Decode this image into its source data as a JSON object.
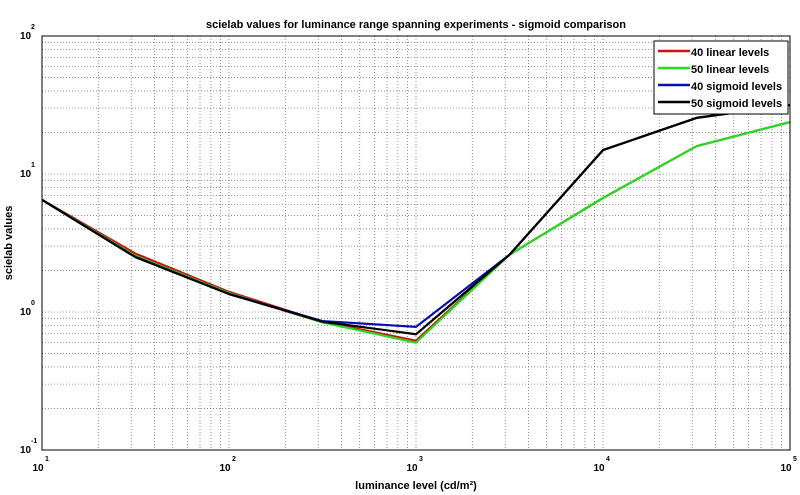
{
  "chart_data": {
    "type": "line",
    "title": "scielab values for luminance range spanning experiments - sigmoid comparison",
    "xlabel": "luminance level (cd/m²)",
    "ylabel": "scielab values",
    "xscale": "log",
    "yscale": "log",
    "xlim": [
      10,
      100000
    ],
    "ylim": [
      0.1,
      100
    ],
    "grid": true,
    "legend_position": "top-right",
    "x_ticks": [
      {
        "base": "10",
        "exp": "1"
      },
      {
        "base": "10",
        "exp": "2"
      },
      {
        "base": "10",
        "exp": "3"
      },
      {
        "base": "10",
        "exp": "4"
      },
      {
        "base": "10",
        "exp": "5"
      }
    ],
    "y_ticks": [
      {
        "base": "10",
        "exp": "-1"
      },
      {
        "base": "10",
        "exp": "0"
      },
      {
        "base": "10",
        "exp": "1"
      },
      {
        "base": "10",
        "exp": "2"
      }
    ],
    "x": [
      10,
      31.6,
      100,
      316,
      1000,
      3162,
      10000,
      31623,
      100000
    ],
    "series": [
      {
        "name": "40 linear levels",
        "color": "#d01010",
        "values": [
          6.5,
          2.65,
          1.4,
          0.85,
          0.62,
          2.6,
          6.7,
          15.9,
          23.8
        ]
      },
      {
        "name": "50 linear levels",
        "color": "#22dd22",
        "values": [
          6.5,
          2.55,
          1.37,
          0.84,
          0.6,
          2.6,
          6.7,
          15.9,
          23.8
        ]
      },
      {
        "name": "40 sigmoid levels",
        "color": "#0a10b0",
        "values": [
          6.5,
          2.5,
          1.35,
          0.86,
          0.78,
          2.6,
          14.9,
          25.5,
          31.6
        ]
      },
      {
        "name": "50 sigmoid levels",
        "color": "#000000",
        "values": [
          6.5,
          2.5,
          1.35,
          0.85,
          0.69,
          2.6,
          14.9,
          25.5,
          31.6
        ]
      }
    ]
  }
}
